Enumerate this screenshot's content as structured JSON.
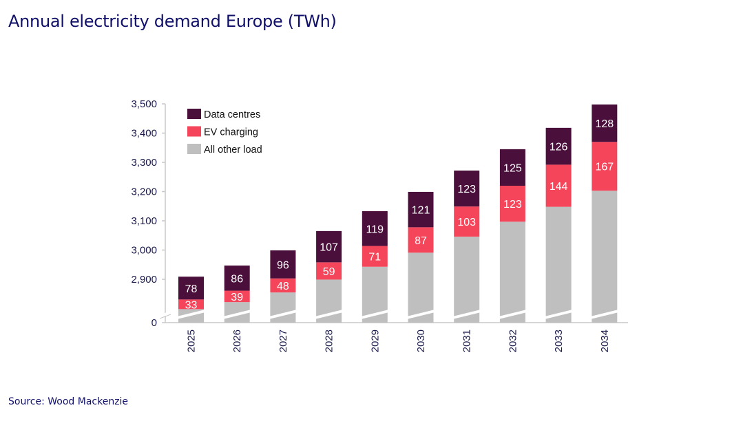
{
  "title": "Annual electricity demand Europe (TWh)",
  "source": "Source: Wood Mackenzie",
  "chart_data": {
    "type": "bar",
    "stacked": true,
    "title": "",
    "xlabel": "",
    "ylabel": "",
    "categories": [
      "2025",
      "2026",
      "2027",
      "2028",
      "2029",
      "2030",
      "2031",
      "2032",
      "2033",
      "2034"
    ],
    "series": [
      {
        "name": "All other load",
        "color": "#bfbfbf",
        "values": [
          2798,
          2822,
          2855,
          2899,
          2943,
          2991,
          3046,
          3097,
          3148,
          3203
        ]
      },
      {
        "name": "EV charging",
        "color": "#f5455a",
        "values": [
          33,
          39,
          48,
          59,
          71,
          87,
          103,
          123,
          144,
          167
        ]
      },
      {
        "name": "Data centres",
        "color": "#4b0f3c",
        "values": [
          78,
          86,
          96,
          107,
          119,
          121,
          123,
          125,
          126,
          128
        ]
      }
    ],
    "data_labels": {
      "EV charging": true,
      "Data centres": true
    },
    "yticks": [
      "0",
      "2,900",
      "3,000",
      "3,100",
      "3,200",
      "3,300",
      "3,400",
      "3,500"
    ],
    "ylim": [
      2900,
      3500
    ],
    "axis_break": true,
    "grid": false,
    "legend": [
      "Data centres",
      "EV charging",
      "All other load"
    ],
    "legend_position": "top-left"
  }
}
